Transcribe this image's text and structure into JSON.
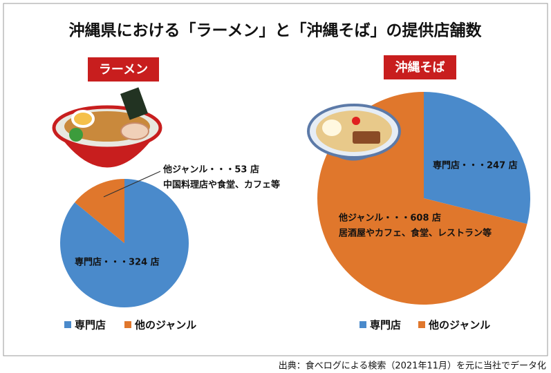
{
  "title": "沖縄県における「ラーメン」と「沖縄そば」の提供店舗数",
  "source": "出典：食べログによる検索（2021年11月）を元に当社でデータ化",
  "chart_data": [
    {
      "type": "pie",
      "subtitle": "ラーメン",
      "categories": [
        "専門店",
        "他のジャンル"
      ],
      "values": [
        324,
        53
      ],
      "value_labels": [
        "専門店・・・324 店",
        "他ジャンル・・・53 店"
      ],
      "annotation": "中国料理店や食堂、カフェ等",
      "colors": [
        "#4a8acb",
        "#e0772c"
      ],
      "subtitle_color": "#c81e1e"
    },
    {
      "type": "pie",
      "subtitle": "沖縄そば",
      "categories": [
        "専門店",
        "他のジャンル"
      ],
      "values": [
        247,
        608
      ],
      "value_labels": [
        "専門店・・・247 店",
        "他ジャンル・・・608 店"
      ],
      "annotation": "居酒屋やカフェ、食堂、レストラン等",
      "colors": [
        "#4a8acb",
        "#e0772c"
      ],
      "subtitle_color": "#c81e1e"
    }
  ]
}
